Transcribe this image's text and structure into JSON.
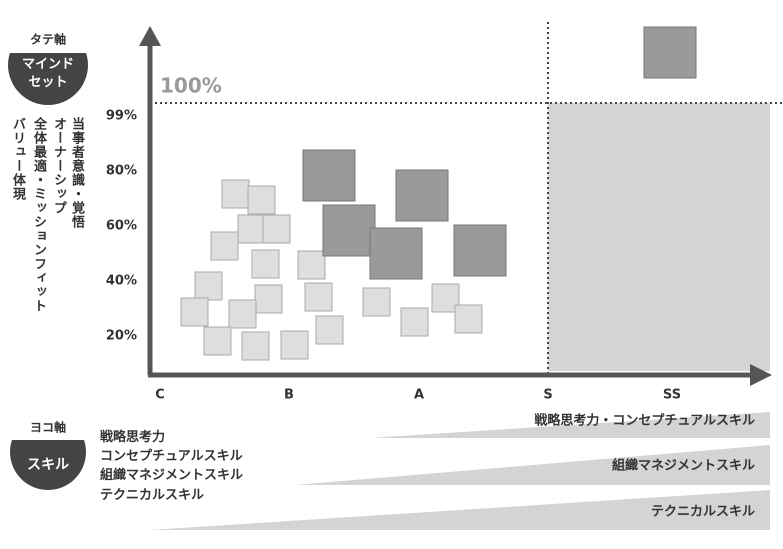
{
  "vertical_axis": {
    "badge_top": "タテ軸",
    "badge_bottom": "マインドセット",
    "items": [
      "当事者意識・覚悟",
      "オーナーシップ",
      "全体最適・ミッションフィット",
      "バリュー体現"
    ],
    "ticks": [
      "99%",
      "80%",
      "60%",
      "40%",
      "20%"
    ],
    "top_label": "100%"
  },
  "horizontal_axis": {
    "badge_top": "ヨコ軸",
    "badge_bottom": "スキル",
    "ticks": [
      "C",
      "B",
      "A",
      "S",
      "SS"
    ],
    "items": [
      "戦略思考力",
      "コンセプチュアルスキル",
      "組織マネジメントスキル",
      "テクニカルスキル"
    ],
    "wedges": [
      "戦略思考力・コンセプチュアルスキル",
      "組織マネジメントスキル",
      "テクニカルスキル"
    ]
  }
}
